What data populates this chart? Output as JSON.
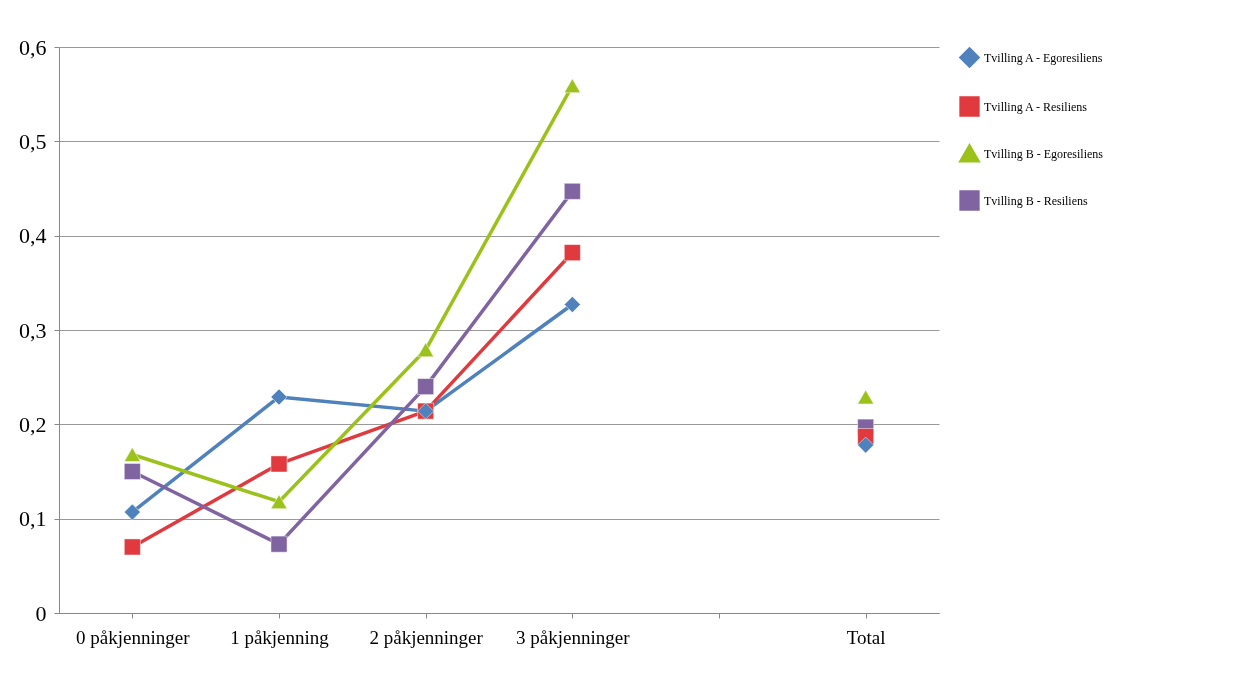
{
  "chart_data": {
    "type": "line",
    "categories": [
      "0 påkjenninger",
      "1 påkjenning",
      "2 påkjenninger",
      "3 påkjenninger",
      null,
      "Total"
    ],
    "series": [
      {
        "name": "Tvilling A - Egoresiliens",
        "color": "#4f81bd",
        "marker": "diamond",
        "values": [
          0.107,
          0.229,
          0.214,
          0.327,
          null,
          0.178
        ]
      },
      {
        "name": "Tvilling A - Resiliens",
        "color": "#e0393e",
        "marker": "square",
        "values": [
          0.07,
          0.158,
          0.214,
          0.382,
          null,
          0.187
        ]
      },
      {
        "name": "Tvilling B - Egoresiliens",
        "color": "#9bc21a",
        "marker": "triangle",
        "values": [
          0.168,
          0.118,
          0.279,
          0.559,
          null,
          0.229
        ]
      },
      {
        "name": "Tvilling B - Resiliens",
        "color": "#8064a2",
        "marker": "square",
        "values": [
          0.15,
          0.073,
          0.24,
          0.447,
          null,
          0.197
        ]
      }
    ],
    "ylim": [
      0,
      0.6
    ],
    "yticks": [
      {
        "value": 0,
        "label": "0"
      },
      {
        "value": 0.1,
        "label": "0,1"
      },
      {
        "value": 0.2,
        "label": "0,2"
      },
      {
        "value": 0.3,
        "label": "0,3"
      },
      {
        "value": 0.4,
        "label": "0,4"
      },
      {
        "value": 0.5,
        "label": "0,5"
      },
      {
        "value": 0.6,
        "label": "0,6"
      }
    ],
    "grid": "y",
    "legend": "right",
    "line_style": "solid"
  }
}
